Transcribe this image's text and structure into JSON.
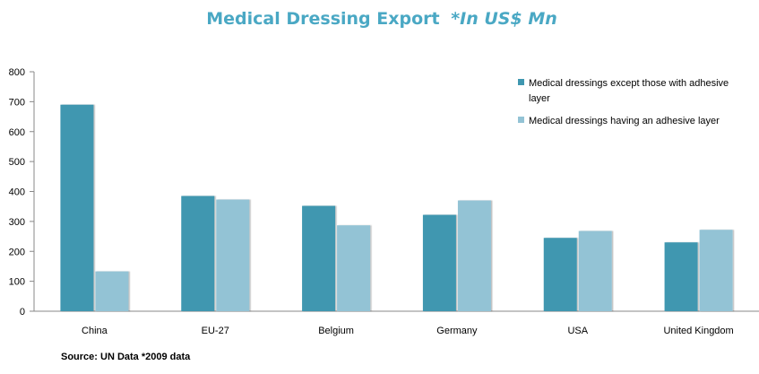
{
  "chart_data": {
    "type": "bar",
    "title": "Medical Dressing Export",
    "title_suffix": "*In US$ Mn",
    "categories": [
      "China",
      "EU-27",
      "Belgium",
      "Germany",
      "USA",
      "United Kingdom"
    ],
    "series": [
      {
        "name": "Medical dressings except those with adhesive layer",
        "color": "#3f97b0",
        "values": [
          690,
          385,
          352,
          322,
          245,
          230
        ]
      },
      {
        "name": "Medical dressings having an adhesive layer",
        "color": "#93c3d5",
        "values": [
          133,
          373,
          287,
          370,
          268,
          272
        ]
      }
    ],
    "ylim": [
      0,
      800
    ],
    "y_ticks": [
      "0",
      "100",
      "200",
      "300",
      "400",
      "500",
      "600",
      "700",
      "800"
    ],
    "grid": false,
    "legend_position": "top-right",
    "source": "Source: UN Data *2009 data",
    "title_color": "#4aa8c4"
  }
}
